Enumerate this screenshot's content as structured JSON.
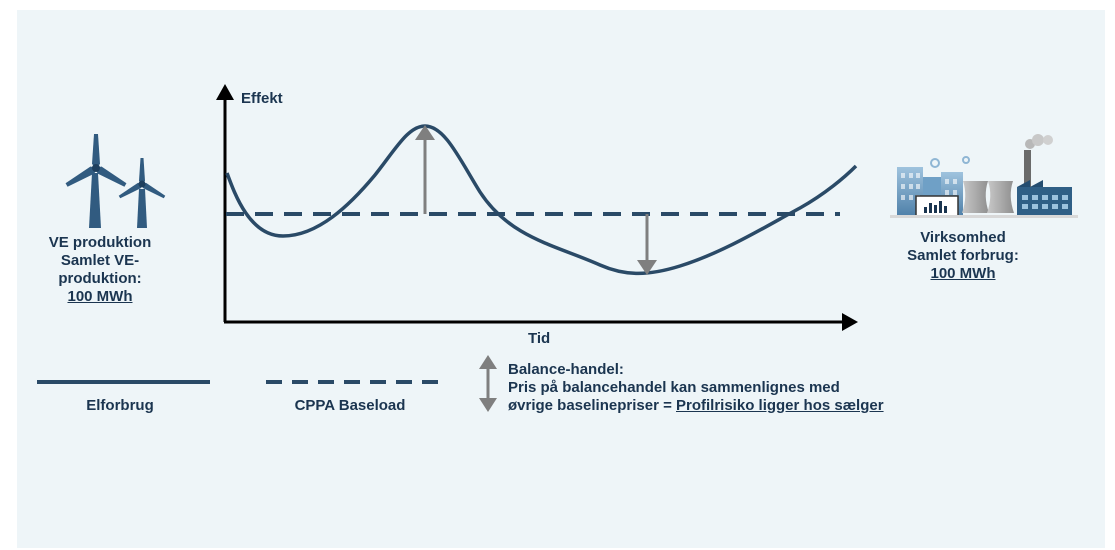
{
  "left_block": {
    "line1": "VE produktion",
    "line2": "Samlet VE-",
    "line3": "produktion:",
    "value": "100 MWh"
  },
  "right_block": {
    "line1": "Virksomhed",
    "line2": "Samlet forbrug:",
    "value": "100 MWh"
  },
  "axes": {
    "y_label": "Effekt",
    "x_label": "Tid"
  },
  "legend": {
    "solid_label": "Elforbrug",
    "dashed_label": "CPPA Baseload"
  },
  "balance": {
    "title": "Balance-handel:",
    "line2": "Pris på balancehandel kan sammenlignes med",
    "line3_prefix": "øvrige baselinepriser = ",
    "line3_link": "Profilrisiko ligger hos sælger"
  },
  "colors": {
    "primary": "#1b3550",
    "curve": "#2a4a67",
    "arrow_gray": "#7f7f7f",
    "turbine": "#315b80",
    "background": "#eef5f8"
  },
  "icons": {
    "left": "wind-turbines-icon",
    "right": "factory-city-icon"
  }
}
